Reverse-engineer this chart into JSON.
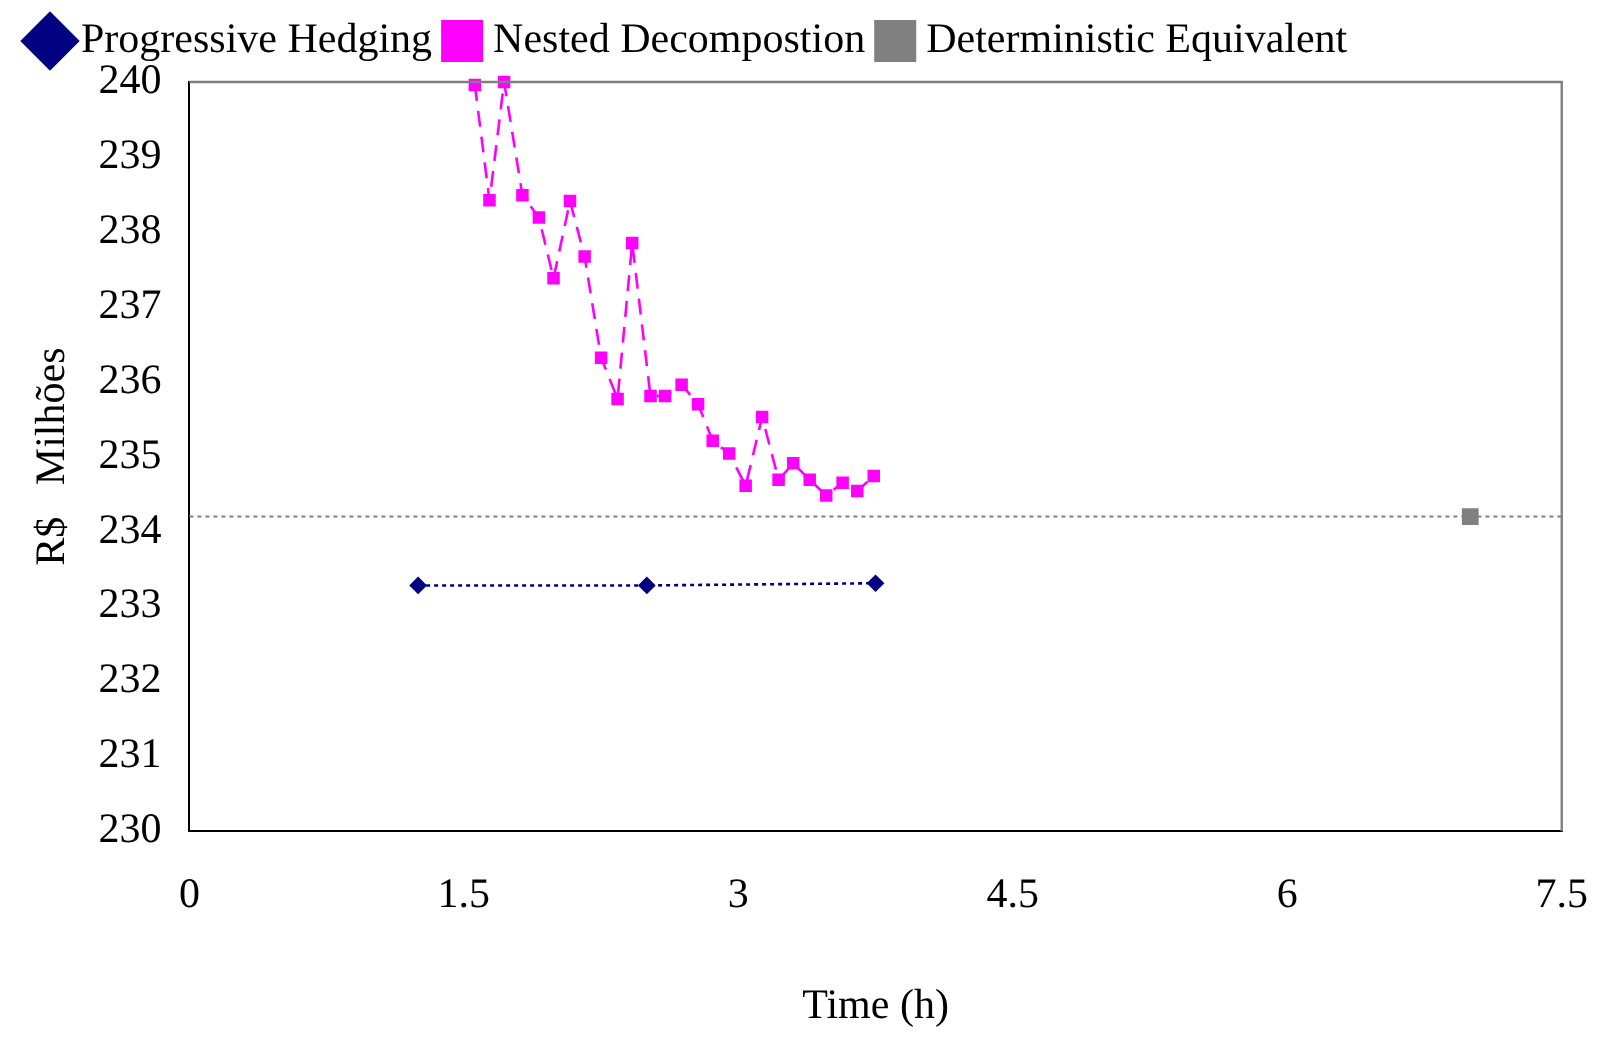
{
  "chart_data": {
    "type": "line",
    "xlabel": "Time (h)",
    "ylabel": "R$   Milhões",
    "xlim": [
      0,
      7.5
    ],
    "xticks": [
      0,
      1.5,
      3,
      4.5,
      6,
      7.5
    ],
    "ylim": [
      230,
      240
    ],
    "yticks": [
      230,
      231,
      232,
      233,
      234,
      235,
      236,
      237,
      238,
      239,
      240
    ],
    "grid": false,
    "legend": "top",
    "ref_lines": [
      {
        "axis": "y",
        "value": 234.2,
        "color": "#808080",
        "line_style": "dotted"
      }
    ],
    "series": [
      {
        "name": "Progressive Hedging",
        "color": "#000080",
        "marker": "diamond",
        "line_style": "dotted",
        "x": [
          1.25,
          2.5,
          3.75
        ],
        "values": [
          233.28,
          233.28,
          233.31
        ]
      },
      {
        "name": "Nested Decompostion",
        "color": "#ff00ff",
        "marker": "square",
        "line_style": "dashed",
        "x": [
          1.56,
          1.64,
          1.72,
          1.82,
          1.91,
          1.99,
          2.08,
          2.16,
          2.25,
          2.34,
          2.42,
          2.52,
          2.6,
          2.69,
          2.78,
          2.86,
          2.95,
          3.04,
          3.13,
          3.22,
          3.3,
          3.39,
          3.48,
          3.57,
          3.65,
          3.74
        ],
        "values": [
          239.96,
          238.42,
          240,
          238.49,
          238.19,
          237.38,
          238.41,
          237.67,
          236.32,
          235.77,
          237.85,
          235.81,
          235.81,
          235.96,
          235.7,
          235.21,
          235.04,
          234.61,
          235.53,
          234.69,
          234.91,
          234.69,
          234.48,
          234.65,
          234.54,
          234.74
        ]
      },
      {
        "name": "Deterministic Equivalent",
        "type": "scatter",
        "color": "#808080",
        "marker": "square",
        "x": [
          7
        ],
        "values": [
          234.2
        ]
      }
    ]
  }
}
